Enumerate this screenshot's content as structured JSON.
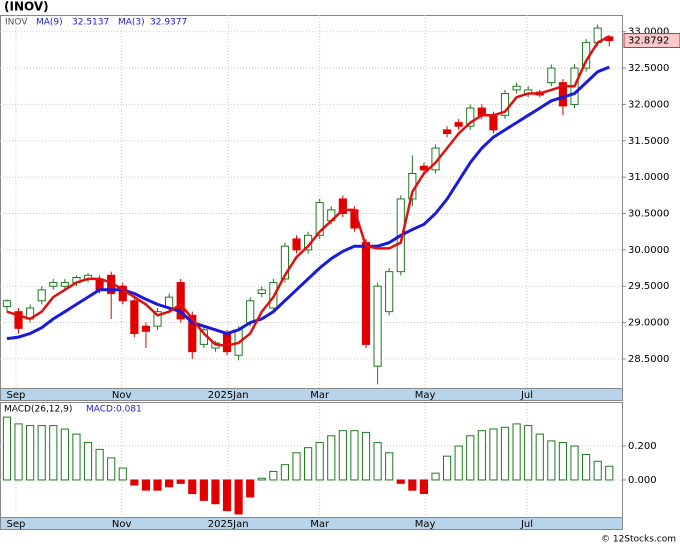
{
  "chart_data": [
    {
      "type": "candlestick",
      "title": "(INOV)",
      "symbol": "INOV",
      "up_color": "#1f7a1f",
      "down_color": "#e00000",
      "open": [
        29.22,
        29.15,
        29.05,
        29.3,
        29.5,
        29.5,
        29.55,
        29.6,
        29.6,
        29.65,
        29.5,
        29.3,
        28.95,
        28.95,
        29.2,
        29.55,
        29.1,
        28.7,
        28.65,
        28.85,
        28.55,
        29.0,
        29.4,
        29.2,
        29.6,
        30.15,
        30.0,
        30.2,
        30.4,
        30.7,
        30.55,
        30.1,
        28.4,
        29.15,
        29.7,
        30.7,
        31.15,
        31.1,
        31.65,
        31.75,
        31.7,
        31.95,
        31.85,
        31.85,
        32.2,
        32.15,
        32.17,
        32.3,
        32.3,
        32.0,
        32.5,
        32.85,
        32.93
      ],
      "high": [
        29.32,
        29.2,
        29.25,
        29.5,
        29.6,
        29.6,
        29.65,
        29.68,
        29.65,
        29.7,
        29.55,
        29.35,
        29.0,
        29.2,
        29.4,
        29.6,
        29.15,
        28.95,
        28.75,
        28.9,
        28.95,
        29.35,
        29.5,
        29.6,
        30.1,
        30.2,
        30.25,
        30.7,
        30.6,
        30.75,
        30.6,
        30.15,
        29.55,
        29.75,
        30.75,
        31.3,
        31.2,
        31.45,
        31.7,
        31.8,
        32.0,
        32.0,
        31.9,
        32.2,
        32.3,
        32.25,
        32.2,
        32.55,
        32.35,
        32.55,
        32.9,
        33.1,
        32.95
      ],
      "low": [
        29.15,
        28.85,
        29.0,
        29.25,
        29.45,
        29.45,
        29.5,
        29.55,
        29.4,
        29.05,
        29.25,
        28.8,
        28.65,
        28.9,
        29.15,
        29.0,
        28.5,
        28.65,
        28.6,
        28.55,
        28.48,
        28.95,
        29.35,
        29.15,
        29.55,
        29.95,
        29.95,
        30.15,
        30.35,
        30.45,
        30.25,
        28.65,
        28.15,
        29.1,
        29.65,
        30.6,
        31.05,
        31.05,
        31.55,
        31.65,
        31.65,
        31.8,
        31.6,
        31.8,
        32.15,
        32.1,
        32.1,
        32.25,
        31.85,
        31.95,
        32.45,
        32.8,
        32.8
      ],
      "close": [
        29.3,
        28.92,
        29.2,
        29.45,
        29.55,
        29.55,
        29.62,
        29.65,
        29.45,
        29.4,
        29.3,
        28.85,
        28.88,
        29.15,
        29.35,
        29.05,
        28.6,
        28.9,
        28.72,
        28.6,
        28.9,
        29.3,
        29.45,
        29.55,
        30.05,
        30.0,
        30.2,
        30.65,
        30.55,
        30.5,
        30.3,
        28.7,
        29.5,
        29.7,
        30.7,
        31.05,
        31.1,
        31.4,
        31.6,
        31.7,
        31.95,
        31.85,
        31.65,
        32.15,
        32.25,
        32.2,
        32.13,
        32.5,
        31.98,
        32.5,
        32.85,
        33.05,
        32.8792
      ],
      "series": [
        {
          "name": "MA(9)",
          "color": "#1a1ad8",
          "values": [
            28.78,
            28.8,
            28.85,
            28.93,
            29.05,
            29.15,
            29.25,
            29.35,
            29.45,
            29.45,
            29.45,
            29.4,
            29.32,
            29.25,
            29.2,
            29.15,
            29.0,
            28.95,
            28.9,
            28.85,
            28.9,
            29.0,
            29.05,
            29.15,
            29.3,
            29.45,
            29.6,
            29.75,
            29.88,
            29.98,
            30.05,
            30.05,
            30.05,
            30.1,
            30.2,
            30.28,
            30.35,
            30.5,
            30.7,
            30.95,
            31.2,
            31.4,
            31.55,
            31.65,
            31.75,
            31.85,
            31.95,
            32.05,
            32.1,
            32.15,
            32.3,
            32.45,
            32.5137
          ]
        },
        {
          "name": "MA(3)",
          "color": "#e01010",
          "values": [
            29.15,
            29.1,
            29.05,
            29.15,
            29.35,
            29.45,
            29.55,
            29.6,
            29.6,
            29.55,
            29.45,
            29.35,
            29.25,
            29.1,
            29.15,
            29.25,
            29.05,
            28.85,
            28.7,
            28.68,
            28.72,
            28.85,
            29.15,
            29.35,
            29.65,
            29.9,
            30.05,
            30.25,
            30.4,
            30.55,
            30.55,
            30.05,
            30.02,
            30.02,
            30.1,
            30.8,
            31.05,
            31.2,
            31.4,
            31.6,
            31.75,
            31.85,
            31.85,
            31.9,
            32.1,
            32.15,
            32.15,
            32.2,
            32.25,
            32.25,
            32.6,
            32.85,
            32.9377
          ]
        }
      ],
      "xlim": [
        -0.6,
        53.1
      ],
      "xticks": [
        {
          "value": 0.78,
          "label": "Sep"
        },
        {
          "value": 9.9,
          "label": "Nov"
        },
        {
          "value": 19.1,
          "label": "2025Jan"
        },
        {
          "value": 27,
          "label": "Mar"
        },
        {
          "value": 36.1,
          "label": "May"
        },
        {
          "value": 44.9,
          "label": "Jul"
        }
      ],
      "ylim": [
        28.1,
        33.23
      ],
      "yticks": [
        {
          "value": 28.5,
          "label": "28.5000"
        },
        {
          "value": 29,
          "label": "29.0000"
        },
        {
          "value": 29.5,
          "label": "29.5000"
        },
        {
          "value": 30,
          "label": "30.0000"
        },
        {
          "value": 30.5,
          "label": "30.5000"
        },
        {
          "value": 31,
          "label": "31.0000"
        },
        {
          "value": 31.5,
          "label": "31.5000"
        },
        {
          "value": 32,
          "label": "32.0000"
        },
        {
          "value": 32.5,
          "label": "32.5000"
        },
        {
          "value": 33,
          "label": "33.0000"
        }
      ],
      "grid": true
    },
    {
      "type": "bar",
      "title": "MACD(26,12,9)",
      "value_text": "MACD:0.081",
      "up_color": "#1f7a1f",
      "down_color": "#e00000",
      "values": [
        0.37,
        0.33,
        0.32,
        0.32,
        0.32,
        0.3,
        0.27,
        0.22,
        0.18,
        0.13,
        0.07,
        -0.03,
        -0.06,
        -0.06,
        -0.04,
        -0.02,
        -0.08,
        -0.12,
        -0.14,
        -0.18,
        -0.2,
        -0.1,
        0.01,
        0.05,
        0.09,
        0.16,
        0.19,
        0.22,
        0.26,
        0.29,
        0.29,
        0.28,
        0.22,
        0.16,
        -0.02,
        -0.06,
        -0.08,
        0.04,
        0.14,
        0.2,
        0.26,
        0.29,
        0.3,
        0.31,
        0.33,
        0.32,
        0.27,
        0.23,
        0.22,
        0.2,
        0.15,
        0.11,
        0.081
      ],
      "xlim": [
        -0.6,
        53.1
      ],
      "xticks": [
        {
          "value": 0.78,
          "label": "Sep"
        },
        {
          "value": 9.9,
          "label": "Nov"
        },
        {
          "value": 19.1,
          "label": "2025Jan"
        },
        {
          "value": 27,
          "label": "Mar"
        },
        {
          "value": 36.1,
          "label": "May"
        },
        {
          "value": 44.9,
          "label": "Jul"
        }
      ],
      "ylim": [
        -0.218,
        0.453
      ],
      "yticks": [
        {
          "value": 0,
          "label": "0.000"
        },
        {
          "value": 0.2,
          "label": "0.200"
        }
      ],
      "grid": true
    }
  ],
  "watermark": "© 12Stocks.com"
}
